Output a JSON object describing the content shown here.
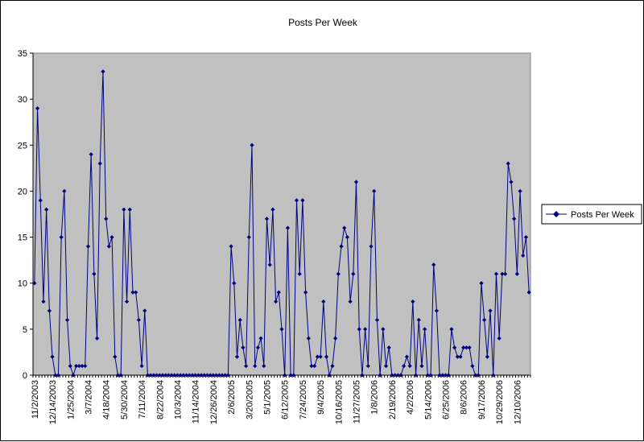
{
  "chart_data": {
    "type": "line",
    "title": "Posts Per Week",
    "xlabel": "",
    "ylabel": "",
    "ylim": [
      0,
      35
    ],
    "yticks": [
      0,
      5,
      10,
      15,
      20,
      25,
      30,
      35
    ],
    "grid": false,
    "legend_position": "right",
    "colors": {
      "series": "#000080",
      "plot_background": "#c0c0c0",
      "axis": "#000000"
    },
    "x_tick_labels": [
      "11/2/2003",
      "12/14/2003",
      "1/25/2004",
      "3/7/2004",
      "4/18/2004",
      "5/30/2004",
      "7/11/2004",
      "8/22/2004",
      "10/3/2004",
      "11/14/2004",
      "12/26/2004",
      "2/6/2005",
      "3/20/2005",
      "5/1/2005",
      "6/12/2005",
      "7/24/2005",
      "9/4/2005",
      "10/16/2005",
      "11/27/2005",
      "1/8/2006",
      "2/19/2006",
      "4/2/2006",
      "5/14/2006",
      "6/25/2006",
      "8/6/2006",
      "9/17/2006",
      "10/29/2006",
      "12/10/2006"
    ],
    "series": [
      {
        "name": "Posts Per Week",
        "values": [
          10,
          29,
          19,
          8,
          18,
          7,
          2,
          0,
          0,
          15,
          20,
          6,
          1,
          0,
          1,
          1,
          1,
          1,
          14,
          24,
          11,
          4,
          23,
          33,
          17,
          14,
          15,
          2,
          0,
          0,
          18,
          8,
          18,
          9,
          9,
          6,
          1,
          7,
          0,
          0,
          0,
          0,
          0,
          0,
          0,
          0,
          0,
          0,
          0,
          0,
          0,
          0,
          0,
          0,
          0,
          0,
          0,
          0,
          0,
          0,
          0,
          0,
          0,
          0,
          0,
          0,
          14,
          10,
          2,
          6,
          3,
          1,
          15,
          25,
          1,
          3,
          4,
          1,
          17,
          12,
          18,
          8,
          9,
          5,
          0,
          16,
          0,
          0,
          19,
          11,
          19,
          9,
          4,
          1,
          1,
          2,
          2,
          8,
          2,
          0,
          1,
          4,
          11,
          14,
          16,
          15,
          8,
          11,
          21,
          5,
          0,
          5,
          1,
          14,
          20,
          6,
          0,
          5,
          1,
          3,
          0,
          0,
          0,
          0,
          1,
          2,
          1,
          8,
          0,
          6,
          1,
          5,
          0,
          0,
          12,
          7,
          0,
          0,
          0,
          0,
          5,
          3,
          2,
          2,
          3,
          3,
          3,
          1,
          0,
          0,
          10,
          6,
          2,
          7,
          0,
          11,
          4,
          11,
          11,
          23,
          21,
          17,
          11,
          20,
          13,
          15,
          9
        ]
      }
    ]
  }
}
